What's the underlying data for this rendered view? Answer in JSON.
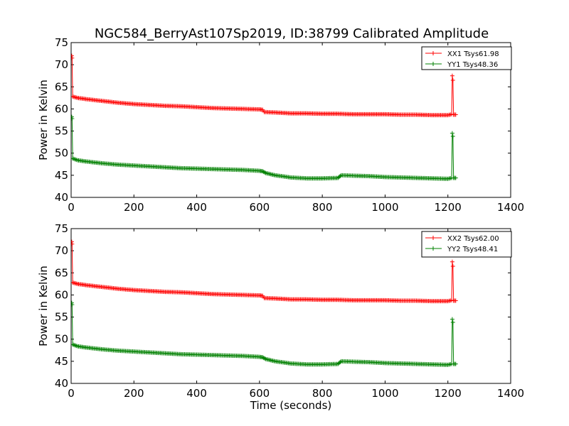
{
  "figure_title": "NGC584_BerryAst107Sp2019, ID:38799 Calibrated Amplitude",
  "chart_data": [
    {
      "type": "line",
      "title": "NGC584_BerryAst107Sp2019, ID:38799 Calibrated Amplitude",
      "xlabel": "",
      "ylabel": "Power in Kelvin",
      "xlim": [
        0,
        1400
      ],
      "ylim": [
        40,
        75
      ],
      "xticks": [
        0,
        200,
        400,
        600,
        800,
        1000,
        1200,
        1400
      ],
      "yticks": [
        40,
        45,
        50,
        55,
        60,
        65,
        70,
        75
      ],
      "legend_position": "top-right",
      "grid": false,
      "series": [
        {
          "name": "XX1 Tsys61.98",
          "color": "#ff0000",
          "marker": "+",
          "points": [
            [
              2,
              72
            ],
            [
              3,
              71.5
            ],
            [
              5,
              62.8
            ],
            [
              20,
              62.5
            ],
            [
              50,
              62.2
            ],
            [
              100,
              61.8
            ],
            [
              150,
              61.4
            ],
            [
              200,
              61.1
            ],
            [
              250,
              60.9
            ],
            [
              300,
              60.7
            ],
            [
              350,
              60.6
            ],
            [
              400,
              60.4
            ],
            [
              450,
              60.2
            ],
            [
              500,
              60.1
            ],
            [
              550,
              60.0
            ],
            [
              600,
              59.9
            ],
            [
              610,
              59.8
            ],
            [
              615,
              59.3
            ],
            [
              650,
              59.2
            ],
            [
              700,
              59.0
            ],
            [
              750,
              59.0
            ],
            [
              800,
              58.9
            ],
            [
              850,
              58.9
            ],
            [
              900,
              58.8
            ],
            [
              950,
              58.8
            ],
            [
              1000,
              58.8
            ],
            [
              1050,
              58.7
            ],
            [
              1100,
              58.7
            ],
            [
              1150,
              58.6
            ],
            [
              1200,
              58.6
            ],
            [
              1212,
              58.8
            ],
            [
              1214,
              67.5
            ],
            [
              1216,
              66.5
            ],
            [
              1218,
              58.7
            ],
            [
              1225,
              58.7
            ]
          ]
        },
        {
          "name": "YY1 Tsys48.36",
          "color": "#008000",
          "marker": "+",
          "points": [
            [
              2,
              58.2
            ],
            [
              3,
              57.8
            ],
            [
              5,
              48.8
            ],
            [
              20,
              48.4
            ],
            [
              50,
              48.1
            ],
            [
              100,
              47.7
            ],
            [
              150,
              47.4
            ],
            [
              200,
              47.2
            ],
            [
              250,
              47.0
            ],
            [
              300,
              46.8
            ],
            [
              350,
              46.6
            ],
            [
              400,
              46.5
            ],
            [
              450,
              46.4
            ],
            [
              500,
              46.3
            ],
            [
              550,
              46.2
            ],
            [
              600,
              46.0
            ],
            [
              610,
              45.9
            ],
            [
              620,
              45.5
            ],
            [
              650,
              45.0
            ],
            [
              700,
              44.5
            ],
            [
              750,
              44.3
            ],
            [
              800,
              44.3
            ],
            [
              850,
              44.4
            ],
            [
              860,
              45.0
            ],
            [
              900,
              44.9
            ],
            [
              950,
              44.8
            ],
            [
              1000,
              44.6
            ],
            [
              1050,
              44.5
            ],
            [
              1100,
              44.4
            ],
            [
              1150,
              44.3
            ],
            [
              1200,
              44.2
            ],
            [
              1212,
              44.4
            ],
            [
              1214,
              54.5
            ],
            [
              1216,
              53.8
            ],
            [
              1218,
              44.4
            ],
            [
              1225,
              44.4
            ]
          ]
        }
      ]
    },
    {
      "type": "line",
      "title": "",
      "xlabel": "Time (seconds)",
      "ylabel": "Power in Kelvin",
      "xlim": [
        0,
        1400
      ],
      "ylim": [
        40,
        75
      ],
      "xticks": [
        0,
        200,
        400,
        600,
        800,
        1000,
        1200,
        1400
      ],
      "yticks": [
        40,
        45,
        50,
        55,
        60,
        65,
        70,
        75
      ],
      "legend_position": "top-right",
      "grid": false,
      "series": [
        {
          "name": "XX2 Tsys62.00",
          "color": "#ff0000",
          "marker": "+",
          "points": [
            [
              2,
              72
            ],
            [
              3,
              71.5
            ],
            [
              5,
              62.8
            ],
            [
              20,
              62.5
            ],
            [
              50,
              62.2
            ],
            [
              100,
              61.8
            ],
            [
              150,
              61.4
            ],
            [
              200,
              61.1
            ],
            [
              250,
              60.9
            ],
            [
              300,
              60.7
            ],
            [
              350,
              60.6
            ],
            [
              400,
              60.4
            ],
            [
              450,
              60.2
            ],
            [
              500,
              60.1
            ],
            [
              550,
              60.0
            ],
            [
              600,
              59.9
            ],
            [
              610,
              59.8
            ],
            [
              615,
              59.3
            ],
            [
              650,
              59.2
            ],
            [
              700,
              59.0
            ],
            [
              750,
              59.0
            ],
            [
              800,
              58.9
            ],
            [
              850,
              58.9
            ],
            [
              900,
              58.8
            ],
            [
              950,
              58.8
            ],
            [
              1000,
              58.8
            ],
            [
              1050,
              58.7
            ],
            [
              1100,
              58.7
            ],
            [
              1150,
              58.6
            ],
            [
              1200,
              58.6
            ],
            [
              1212,
              58.8
            ],
            [
              1214,
              67.5
            ],
            [
              1216,
              66.5
            ],
            [
              1218,
              58.7
            ],
            [
              1225,
              58.7
            ]
          ]
        },
        {
          "name": "YY2 Tsys48.41",
          "color": "#008000",
          "marker": "+",
          "points": [
            [
              2,
              58.2
            ],
            [
              3,
              57.8
            ],
            [
              5,
              48.8
            ],
            [
              20,
              48.4
            ],
            [
              50,
              48.1
            ],
            [
              100,
              47.7
            ],
            [
              150,
              47.4
            ],
            [
              200,
              47.2
            ],
            [
              250,
              47.0
            ],
            [
              300,
              46.8
            ],
            [
              350,
              46.6
            ],
            [
              400,
              46.5
            ],
            [
              450,
              46.4
            ],
            [
              500,
              46.3
            ],
            [
              550,
              46.2
            ],
            [
              600,
              46.0
            ],
            [
              610,
              45.9
            ],
            [
              620,
              45.5
            ],
            [
              650,
              45.0
            ],
            [
              700,
              44.5
            ],
            [
              750,
              44.3
            ],
            [
              800,
              44.3
            ],
            [
              850,
              44.4
            ],
            [
              860,
              45.0
            ],
            [
              900,
              44.9
            ],
            [
              950,
              44.8
            ],
            [
              1000,
              44.6
            ],
            [
              1050,
              44.5
            ],
            [
              1100,
              44.4
            ],
            [
              1150,
              44.3
            ],
            [
              1200,
              44.2
            ],
            [
              1212,
              44.4
            ],
            [
              1214,
              54.5
            ],
            [
              1216,
              53.8
            ],
            [
              1218,
              44.4
            ],
            [
              1225,
              44.4
            ]
          ]
        }
      ]
    }
  ]
}
